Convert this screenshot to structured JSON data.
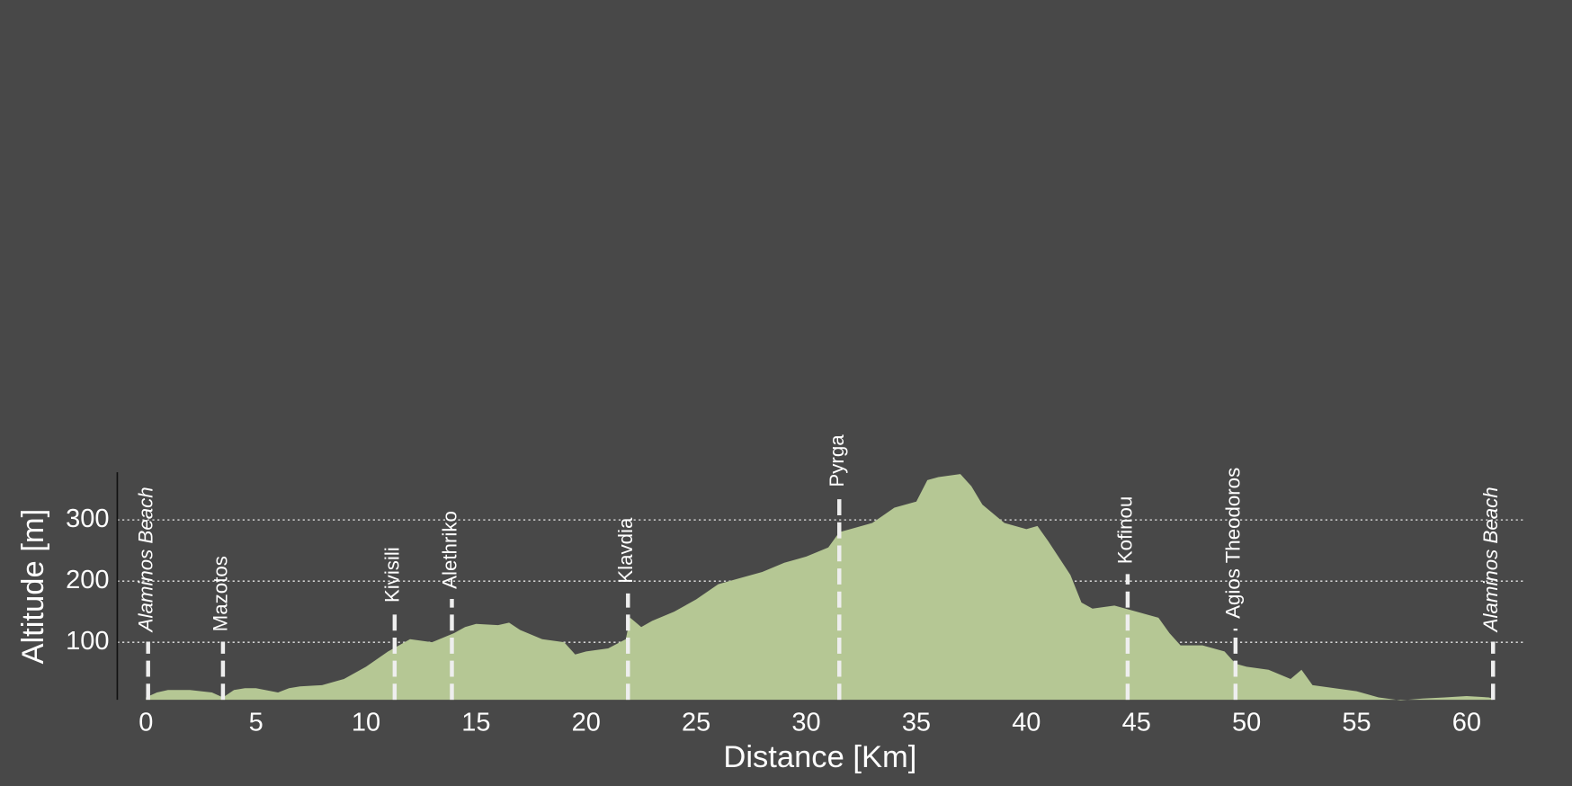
{
  "chart_data": {
    "type": "area",
    "xlabel": "Distance [Km]",
    "ylabel": "Altitude [m]",
    "color": "#b5c794",
    "grid": true,
    "xlim": [
      -1.3,
      62.6
    ],
    "ylim": [
      6,
      378
    ],
    "xticks": [
      0,
      5,
      10,
      15,
      20,
      25,
      30,
      35,
      40,
      45,
      50,
      55,
      60
    ],
    "yticks": [
      100,
      200,
      300
    ],
    "x": [
      0,
      0.5,
      1,
      2,
      3,
      3.5,
      4,
      4.5,
      5,
      6,
      6.5,
      7,
      8,
      9,
      10,
      11,
      11.5,
      12,
      13,
      14,
      14.5,
      15,
      16,
      16.5,
      17,
      18,
      19,
      19.5,
      20,
      21,
      21.8,
      22,
      22.5,
      23,
      24,
      25,
      26,
      27,
      28,
      29,
      30,
      31,
      31.5,
      32,
      33,
      34,
      35,
      35.5,
      36,
      37,
      37.5,
      38,
      39,
      40,
      40.5,
      41,
      42,
      42.5,
      43,
      44,
      45,
      46,
      46.5,
      47,
      48,
      49,
      49.5,
      50,
      51,
      52,
      52.5,
      53,
      54,
      55,
      56,
      57,
      58,
      59,
      60,
      61,
      61.2
    ],
    "values": [
      10,
      18,
      22,
      22,
      18,
      10,
      22,
      25,
      25,
      18,
      25,
      28,
      30,
      40,
      60,
      85,
      95,
      105,
      100,
      115,
      125,
      130,
      128,
      132,
      120,
      105,
      100,
      80,
      85,
      90,
      105,
      140,
      125,
      135,
      150,
      170,
      195,
      205,
      215,
      230,
      240,
      255,
      280,
      285,
      295,
      320,
      330,
      365,
      370,
      375,
      355,
      325,
      295,
      285,
      290,
      265,
      210,
      165,
      155,
      160,
      150,
      140,
      115,
      95,
      95,
      85,
      65,
      60,
      55,
      40,
      55,
      30,
      25,
      20,
      10,
      5,
      8,
      10,
      12,
      10,
      8
    ],
    "waypoints": [
      {
        "label": "Alaminos Beach",
        "x": 0.1,
        "italic": true
      },
      {
        "label": "Mazotos",
        "x": 3.5,
        "italic": false
      },
      {
        "label": "Kivisili",
        "x": 11.3,
        "italic": false
      },
      {
        "label": "Alethriko",
        "x": 13.9,
        "italic": false
      },
      {
        "label": "Klavdia",
        "x": 21.9,
        "italic": false
      },
      {
        "label": "Pyrga",
        "x": 31.5,
        "italic": false
      },
      {
        "label": "Kofinou",
        "x": 44.6,
        "italic": false
      },
      {
        "label": "Agios Theodoros",
        "x": 49.5,
        "italic": false
      },
      {
        "label": "Alaminos Beach",
        "x": 61.2,
        "italic": true
      }
    ]
  }
}
